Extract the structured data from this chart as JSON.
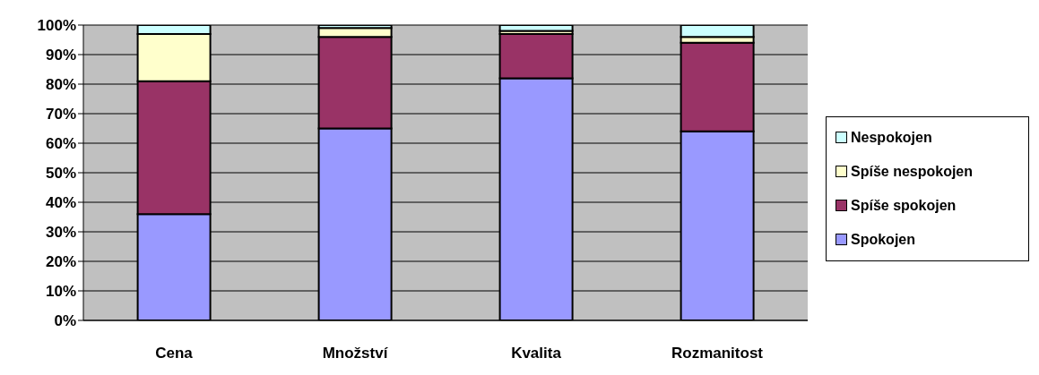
{
  "chart_data": {
    "type": "bar",
    "stacked": true,
    "categories": [
      "Cena",
      "Množství",
      "Kvalita",
      "Rozmanitost"
    ],
    "series": [
      {
        "name": "Spokojen",
        "color": "#9999ff",
        "values": [
          36,
          65,
          82,
          64
        ]
      },
      {
        "name": "Spíše spokojen",
        "color": "#993366",
        "values": [
          45,
          31,
          15,
          30
        ]
      },
      {
        "name": "Spíše nespokojen",
        "color": "#ffffcc",
        "values": [
          16,
          3,
          1,
          2
        ]
      },
      {
        "name": "Nespokojen",
        "color": "#ccffff",
        "values": [
          3,
          1,
          2,
          4
        ]
      }
    ],
    "ylim": [
      0,
      100
    ],
    "yticks": [
      {
        "value": 0,
        "label": "0%"
      },
      {
        "value": 10,
        "label": "10%"
      },
      {
        "value": 20,
        "label": "20%"
      },
      {
        "value": 30,
        "label": "30%"
      },
      {
        "value": 40,
        "label": "40%"
      },
      {
        "value": 50,
        "label": "50%"
      },
      {
        "value": 60,
        "label": "60%"
      },
      {
        "value": 70,
        "label": "70%"
      },
      {
        "value": 80,
        "label": "80%"
      },
      {
        "value": 90,
        "label": "90%"
      },
      {
        "value": 100,
        "label": "100%"
      }
    ],
    "grid": "y",
    "legend": "right"
  }
}
